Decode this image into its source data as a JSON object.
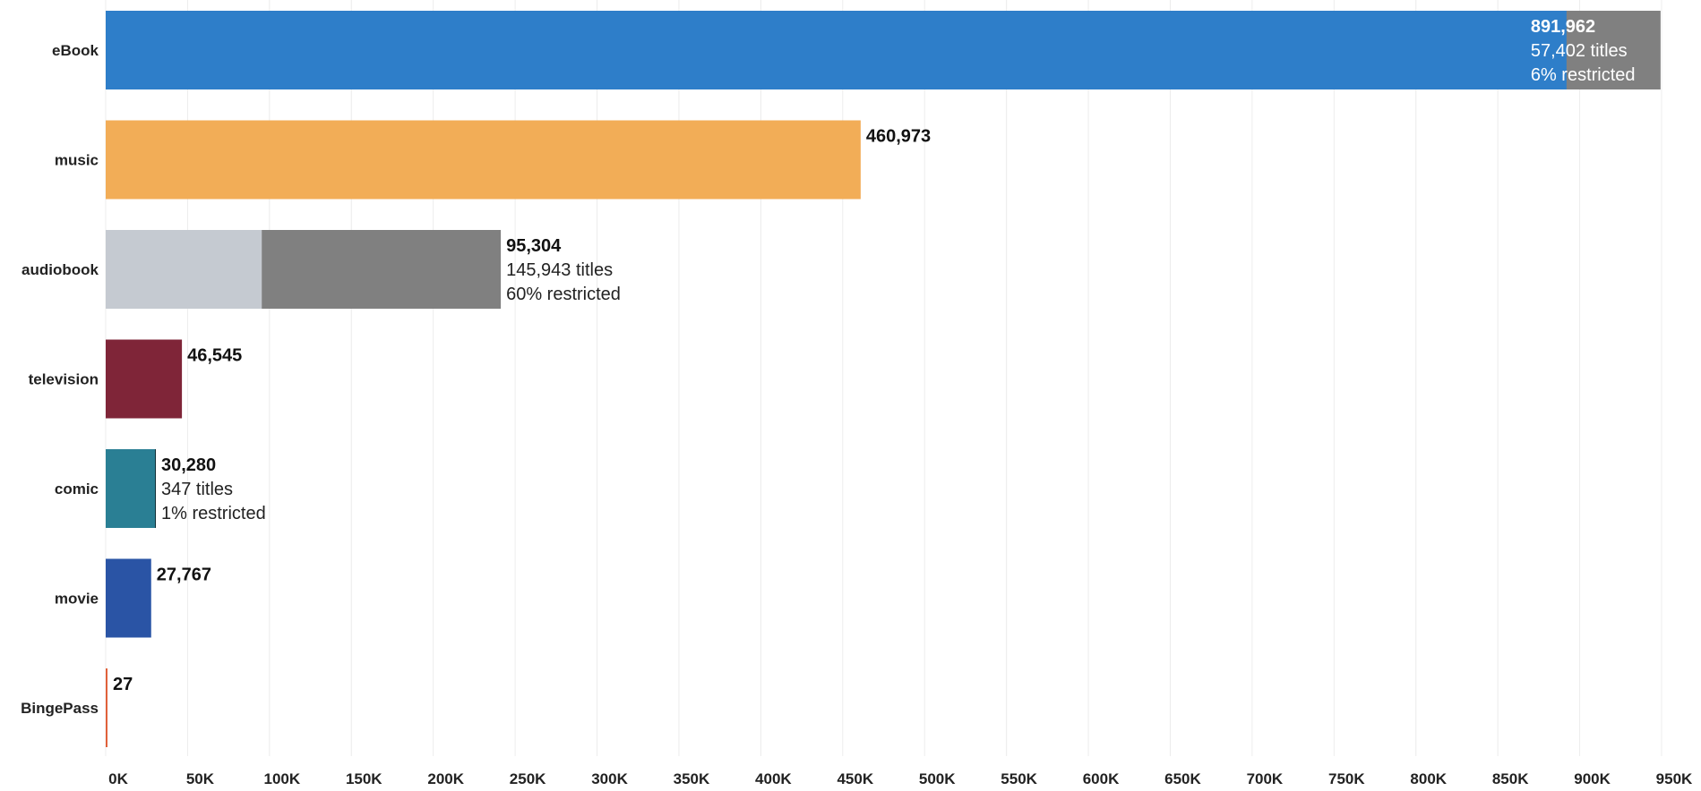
{
  "chart_data": {
    "type": "bar",
    "orientation": "horizontal",
    "xlim": [
      0,
      950000
    ],
    "x_ticks": [
      0,
      50000,
      100000,
      150000,
      200000,
      250000,
      300000,
      350000,
      400000,
      450000,
      500000,
      550000,
      600000,
      650000,
      700000,
      750000,
      800000,
      850000,
      900000,
      950000
    ],
    "x_tick_labels": [
      "0K",
      "50K",
      "100K",
      "150K",
      "200K",
      "250K",
      "300K",
      "350K",
      "400K",
      "450K",
      "500K",
      "550K",
      "600K",
      "650K",
      "700K",
      "750K",
      "800K",
      "850K",
      "900K",
      "950K"
    ],
    "grid": "vertical",
    "categories": [
      "eBook",
      "music",
      "audiobook",
      "television",
      "comic",
      "movie",
      "BingePass"
    ],
    "bars": [
      {
        "category": "eBook",
        "value": 891962,
        "value_label": "891,962",
        "titles_label": "57,402 titles",
        "restricted_label": "6% restricted",
        "restricted_value": 57402,
        "color": "#2e7ec9",
        "restricted_color": "#808080",
        "label_inside": true
      },
      {
        "category": "music",
        "value": 460973,
        "value_label": "460,973",
        "color": "#f2ad57"
      },
      {
        "category": "audiobook",
        "value": 95304,
        "value_label": "95,304",
        "titles_label": "145,943 titles",
        "restricted_label": "60% restricted",
        "restricted_value": 145943,
        "color": "#c5cad1",
        "restricted_color": "#808080"
      },
      {
        "category": "television",
        "value": 46545,
        "value_label": "46,545",
        "color": "#7f2538"
      },
      {
        "category": "comic",
        "value": 30280,
        "value_label": "30,280",
        "titles_label": "347 titles",
        "restricted_label": "1% restricted",
        "restricted_value": 347,
        "color": "#2a7f94"
      },
      {
        "category": "movie",
        "value": 27767,
        "value_label": "27,767",
        "color": "#2a54a5"
      },
      {
        "category": "BingePass",
        "value": 27,
        "value_label": "27",
        "color": "#e0603a"
      }
    ]
  }
}
